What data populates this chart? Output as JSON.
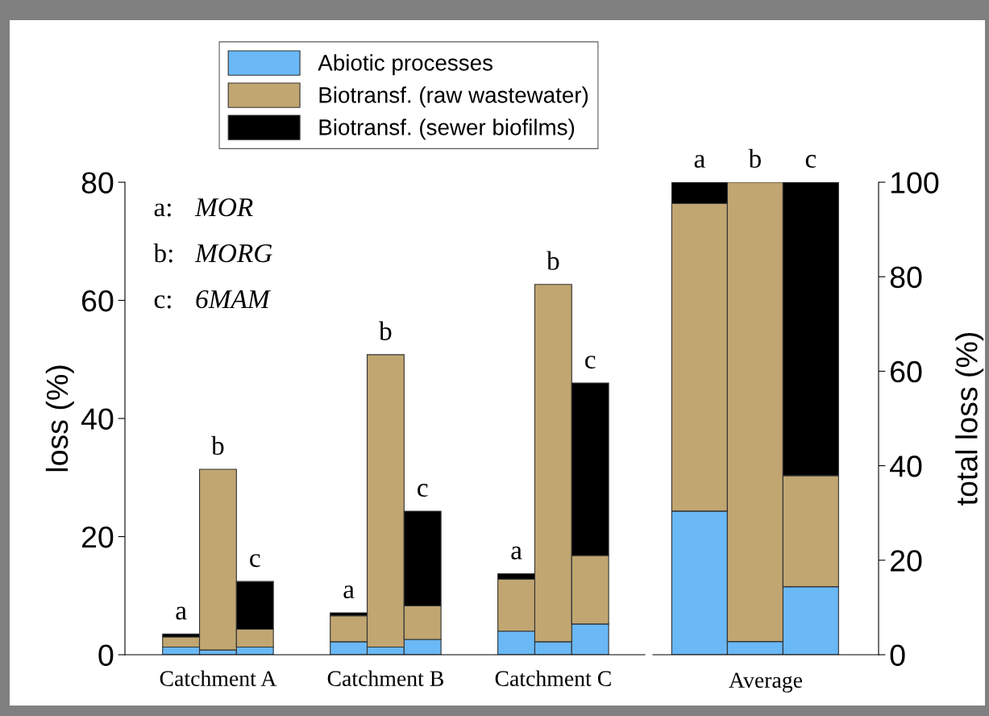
{
  "chart_data": [
    {
      "type": "bar",
      "stacked": true,
      "ylabel": "loss (%)",
      "ylim": [
        0,
        80
      ],
      "yticks": [
        0,
        20,
        40,
        60,
        80
      ],
      "legend": "top",
      "categories": [
        null,
        null,
        null,
        null,
        null,
        null,
        null,
        null,
        null
      ],
      "series": [
        {
          "name": "Abiotic processes",
          "color": "#6ab8f5",
          "values": [
            1.3,
            0.8,
            1.3,
            2.2,
            1.3,
            2.6,
            4.0,
            2.2,
            5.2
          ]
        },
        {
          "name": "Biotransf. (raw wastewater)",
          "color": "#c1a671",
          "values": [
            1.7,
            30.6,
            3.0,
            4.4,
            49.5,
            5.7,
            8.8,
            60.5,
            11.6
          ]
        },
        {
          "name": "Biotransf. (sewer biofilms)",
          "color": "#000000",
          "values": [
            0.5,
            0,
            8.1,
            0.5,
            0,
            16.0,
            0.9,
            0,
            29.2
          ],
          "value_labels": [
            "a",
            "b",
            "c",
            "a",
            "b",
            "c",
            "a",
            "b",
            "c"
          ]
        }
      ],
      "annotations": [
        "Catchment A",
        "Catchment B",
        "Catchment C",
        "a:  MOR",
        "b:  MORG",
        "c:  6MAM"
      ]
    },
    {
      "type": "bar",
      "stacked": true,
      "ylabel": "total loss (%)",
      "ylim": [
        0,
        100
      ],
      "yticks": [
        0,
        20,
        40,
        60,
        80,
        100
      ],
      "xlabel": "Average",
      "categories": [
        null,
        null,
        null
      ],
      "series": [
        {
          "color": "#6ab8f5",
          "values": [
            30.4,
            2.8,
            14.4
          ]
        },
        {
          "color": "#c1a671",
          "values": [
            65.1,
            97.2,
            23.5
          ]
        },
        {
          "color": "#000000",
          "values": [
            4.5,
            0,
            62.1
          ],
          "value_labels": [
            "a",
            "b",
            "c"
          ]
        }
      ]
    }
  ]
}
